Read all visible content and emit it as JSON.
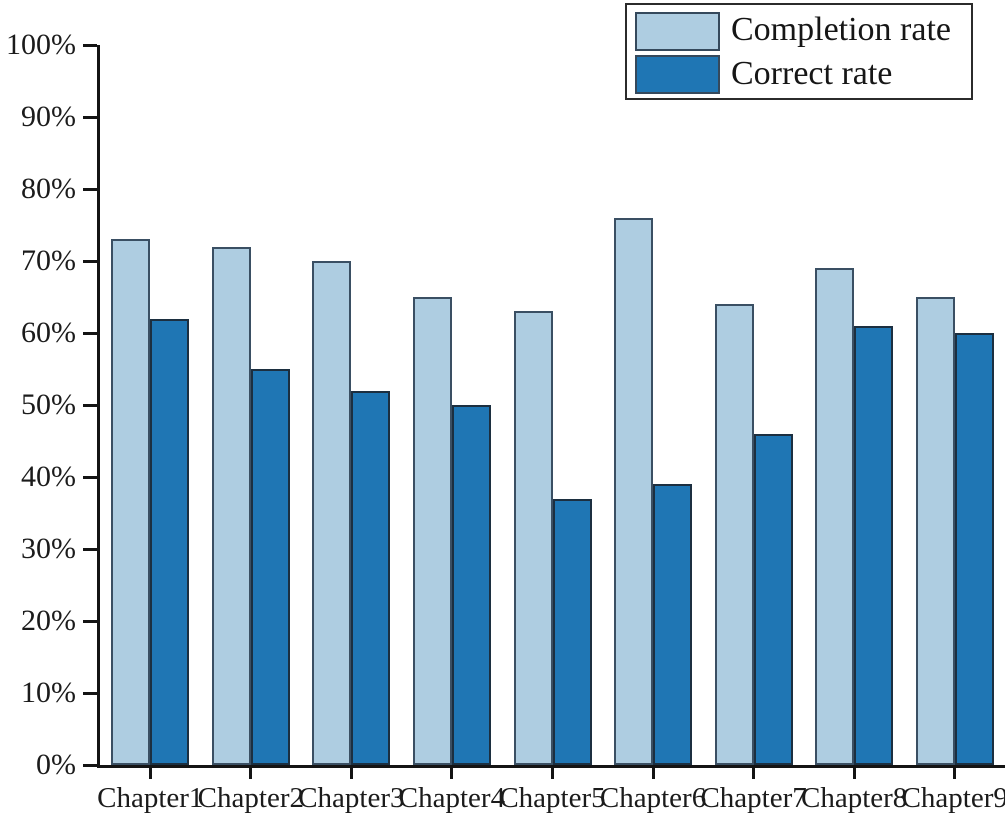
{
  "chart_data": {
    "type": "bar",
    "title": "",
    "xlabel": "",
    "ylabel": "",
    "categories": [
      "Chapter1",
      "Chapter2",
      "Chapter3",
      "Chapter4",
      "Chapter5",
      "Chapter6",
      "Chapter7",
      "Chapter8",
      "Chapter9"
    ],
    "series": [
      {
        "name": "Completion rate",
        "values": [
          73,
          72,
          70,
          65,
          63,
          76,
          64,
          69,
          65
        ],
        "fill_color": "#aecde1",
        "edge_color": "#3a4f63"
      },
      {
        "name": "Correct rate",
        "values": [
          62,
          55,
          52,
          50,
          37,
          39,
          46,
          61,
          60
        ],
        "fill_color": "#1f76b4",
        "edge_color": "#1c2f40"
      }
    ],
    "y_axis": {
      "min": 0,
      "max": 100,
      "tick_step": 10,
      "tick_labels": [
        "0%",
        "10%",
        "20%",
        "30%",
        "40%",
        "50%",
        "60%",
        "70%",
        "80%",
        "90%",
        "100%"
      ]
    },
    "legend_position": "top-right",
    "grid": false,
    "axis_color": "#141414",
    "background_color": "#ffffff"
  }
}
